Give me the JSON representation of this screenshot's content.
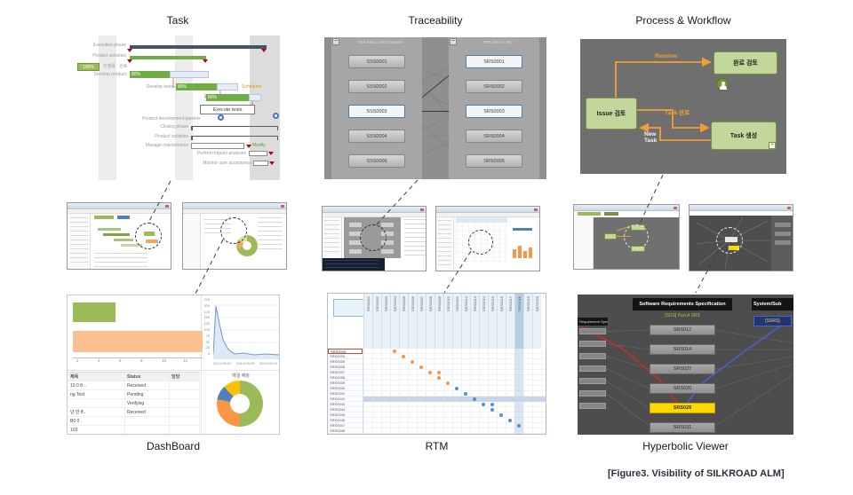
{
  "figure": {
    "caption": "[Figure3. Visibility of SILKROAD ALM]"
  },
  "labels": {
    "task": "Task",
    "traceability": "Traceability",
    "process": "Process & Workflow",
    "dashboard": "DashBoard",
    "rtm": "RTM",
    "hyperbolic": "Hyperbolic Viewer"
  },
  "icons": {
    "collapse": "−",
    "plus": "+"
  },
  "colors": {
    "green": "#9bbb59",
    "olive": "#77933c",
    "orange": "#f79646",
    "blue": "#558ed5",
    "navy": "#44546a",
    "yellow": "#ffd800",
    "red": "#b00020"
  },
  "task": {
    "rows": {
      "execution_phase": "Execution phase",
      "product_activities": "Product activities",
      "develop_product": "Develop product",
      "develop_tests": "Develop tests",
      "execute_tests": "Execute tests",
      "pipeline": "Product development pipeline",
      "closing_phase": "Closing phase",
      "product_activities2": "Product activities",
      "manage_maintenance": "Manage maintenance",
      "impact": "Perform impact analyses",
      "monitor": "Monitor user acceptance"
    },
    "pct_100": "100%",
    "pct_80a": "80%",
    "pct_80b": "80%",
    "pct_80c": "80%",
    "progress_note": "진행률 : 완료",
    "tag_scheduler": "Scheduler",
    "tag_modify": "Modify"
  },
  "traceability": {
    "left_header": "SSS Basic Select System",
    "right_header": "SRS (Item A SS)",
    "left_items": [
      {
        "id": "SSS0001",
        "selected": false
      },
      {
        "id": "SSS0002",
        "selected": false
      },
      {
        "id": "SSS0003",
        "selected": true
      },
      {
        "id": "SSS0004",
        "selected": false
      },
      {
        "id": "SSS0006",
        "selected": false
      }
    ],
    "right_items": [
      {
        "id": "SRS0001",
        "selected": true
      },
      {
        "id": "SRS0002",
        "selected": false
      },
      {
        "id": "SRS0003",
        "selected": true
      },
      {
        "id": "SRS0004",
        "selected": false
      },
      {
        "id": "SRS0005",
        "selected": false
      }
    ]
  },
  "process": {
    "node_issue": "Issue 검토",
    "node_review": "완료 검토",
    "node_task": "Task 생성",
    "edge_resolve": "Resolve",
    "edge_task_done": "Task 완료",
    "edge_new_task": "New Task"
  },
  "dashboard": {
    "bar_ticks": [
      "2",
      "4",
      "6",
      "8",
      "10",
      "12"
    ],
    "line_ticks_y": [
      "225",
      "200",
      "175",
      "150",
      "125",
      "100",
      "75",
      "50",
      "25",
      "0"
    ],
    "line_ticks_x": [
      "2014-09-07",
      "2014-09-09",
      "2014-09-11"
    ],
    "donut_title": "해결 예정",
    "table": {
      "headers": [
        "제목",
        "Status",
        "담당"
      ],
      "rows": [
        [
          "10 0 8 :.",
          "Received",
          ""
        ],
        [
          "ng Test",
          "Pending",
          ""
        ],
        [
          "",
          "Verifying",
          ""
        ],
        [
          "년 반 ff..",
          "Received",
          ""
        ],
        [
          "B0 0 .",
          "",
          ""
        ],
        [
          "103",
          "",
          ""
        ]
      ]
    }
  },
  "rtm": {
    "col_labels": [
      "SRS0001",
      "SRS0002",
      "SRS0003",
      "SRS0004",
      "SRS0005",
      "SRS0006",
      "SRS0007",
      "SRS0008",
      "SRS0009",
      "SRS0010",
      "SRS0011",
      "SRS0012",
      "SRS0013",
      "SRS0014",
      "SRS0015",
      "SRS0016",
      "SRS0017",
      "SRS0018",
      "SRS0019",
      "SRS0020"
    ],
    "row_labels": [
      "SRS0033",
      "SRS0034",
      "SRS0035",
      "SRS0036",
      "SRS0037",
      "SRS0038",
      "SRS0039",
      "SRS0040",
      "SRS0041",
      "SRS0042",
      "SRS0043",
      "SRS0044",
      "SRS0045",
      "SRS0046",
      "SRS0047",
      "SRS0048"
    ],
    "highlight_col": 17,
    "highlight_row": 9,
    "dots": [
      {
        "r": 0,
        "c": 3,
        "k": "o"
      },
      {
        "r": 1,
        "c": 4,
        "k": "o"
      },
      {
        "r": 2,
        "c": 5,
        "k": "o"
      },
      {
        "r": 3,
        "c": 6,
        "k": "o"
      },
      {
        "r": 4,
        "c": 7,
        "k": "o"
      },
      {
        "r": 4,
        "c": 8,
        "k": "o"
      },
      {
        "r": 5,
        "c": 8,
        "k": "o"
      },
      {
        "r": 6,
        "c": 9,
        "k": "o"
      },
      {
        "r": 7,
        "c": 10,
        "k": "b"
      },
      {
        "r": 8,
        "c": 11,
        "k": "b"
      },
      {
        "r": 9,
        "c": 12,
        "k": "b"
      },
      {
        "r": 10,
        "c": 13,
        "k": "b"
      },
      {
        "r": 10,
        "c": 14,
        "k": "b"
      },
      {
        "r": 11,
        "c": 14,
        "k": "b"
      },
      {
        "r": 12,
        "c": 15,
        "k": "b"
      },
      {
        "r": 13,
        "c": 16,
        "k": "b"
      },
      {
        "r": 14,
        "c": 17,
        "k": "b"
      }
    ]
  },
  "hyperbolic": {
    "left_header": "Requirement Spec",
    "center_header": "Software Requirements Specification",
    "center_subtitle": "[SRS] Part A SRS",
    "right_header": "System/Sub",
    "right_item": "[SSRS]",
    "center_items": [
      {
        "id": "SRS012",
        "highlight": false
      },
      {
        "id": "SRS014",
        "highlight": false
      },
      {
        "id": "SRS037",
        "highlight": false
      },
      {
        "id": "SRS020",
        "highlight": false
      },
      {
        "id": "SRS029",
        "highlight": true
      },
      {
        "id": "SRS031",
        "highlight": false
      }
    ]
  }
}
